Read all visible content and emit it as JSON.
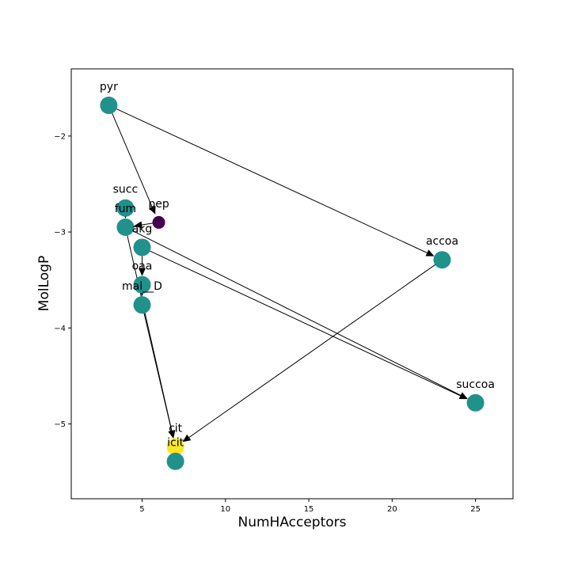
{
  "chart_data": {
    "type": "scatter",
    "title": "",
    "xlabel": "NumHAcceptors",
    "ylabel": "MolLogP",
    "xlim": [
      0.75,
      27.25
    ],
    "ylim": [
      -5.78,
      -1.3
    ],
    "grid": false,
    "x_ticks": [
      5,
      10,
      15,
      20,
      25
    ],
    "x_tick_labels": [
      "5",
      "10",
      "15",
      "20",
      "25"
    ],
    "y_ticks": [
      -2,
      -3,
      -4,
      -5
    ],
    "y_tick_labels": [
      "−2",
      "−3",
      "−4",
      "−5"
    ],
    "nodes": [
      {
        "id": "pyr",
        "label": "pyr",
        "x": 3,
        "y": -1.68,
        "color": "#21918c"
      },
      {
        "id": "pep",
        "label": "pep",
        "x": 6,
        "y": -2.9,
        "color": "#440154"
      },
      {
        "id": "succ",
        "label": "succ",
        "x": 4,
        "y": -2.75,
        "color": "#21918c"
      },
      {
        "id": "fum",
        "label": "fum",
        "x": 4,
        "y": -2.95,
        "color": "#21918c"
      },
      {
        "id": "akg",
        "label": "akg",
        "x": 5,
        "y": -3.16,
        "color": "#21918c"
      },
      {
        "id": "oaa",
        "label": "oaa",
        "x": 5,
        "y": -3.55,
        "color": "#21918c"
      },
      {
        "id": "mal_D",
        "label": "mal__D",
        "x": 5,
        "y": -3.76,
        "color": "#21918c"
      },
      {
        "id": "cit",
        "label": "cit",
        "x": 7,
        "y": -5.24,
        "color": "#fde725"
      },
      {
        "id": "icit",
        "label": "icit",
        "x": 7,
        "y": -5.39,
        "color": "#21918c"
      },
      {
        "id": "accoa",
        "label": "accoa",
        "x": 23,
        "y": -3.29,
        "color": "#21918c"
      },
      {
        "id": "succoa",
        "label": "succoa",
        "x": 25,
        "y": -4.78,
        "color": "#21918c"
      }
    ],
    "edges": [
      {
        "from": "pyr",
        "to": "pep"
      },
      {
        "from": "pyr",
        "to": "accoa"
      },
      {
        "from": "pep",
        "to": "fum"
      },
      {
        "from": "fum",
        "to": "succoa"
      },
      {
        "from": "akg",
        "to": "succoa"
      },
      {
        "from": "accoa",
        "to": "cit"
      },
      {
        "from": "succ",
        "to": "fum"
      },
      {
        "from": "fum",
        "to": "cit"
      },
      {
        "from": "akg",
        "to": "oaa"
      },
      {
        "from": "oaa",
        "to": "mal_D"
      },
      {
        "from": "mal_D",
        "to": "cit"
      }
    ]
  }
}
